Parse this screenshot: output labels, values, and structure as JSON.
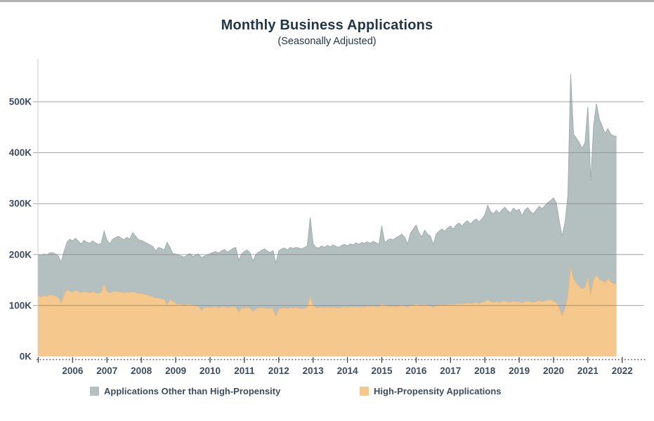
{
  "chart_data": {
    "type": "area",
    "stacked": true,
    "title": "Monthly Business Applications",
    "subtitle": "(Seasonally Adjusted)",
    "frequency": "monthly",
    "x_start": "2005-01",
    "x_end": "2021-11",
    "x_tick_years": [
      2006,
      2007,
      2008,
      2009,
      2010,
      2011,
      2012,
      2013,
      2014,
      2015,
      2016,
      2017,
      2018,
      2019,
      2020,
      2021,
      2022
    ],
    "y_ticks_K": [
      0,
      100,
      200,
      300,
      400,
      500
    ],
    "y_tick_labels": [
      "0K",
      "100K",
      "200K",
      "300K",
      "400K",
      "500K"
    ],
    "ylim_K": [
      0,
      575
    ],
    "grid": "horizontal",
    "legend_position": "bottom",
    "series": [
      {
        "name": "High-Propensity Applications",
        "color": "#f5c88d",
        "edge_color": "#e9b77d",
        "values_thousands": [
          119,
          117,
          120,
          118,
          121,
          120,
          118,
          116,
          105,
          121,
          131,
          128,
          126,
          130,
          127,
          125,
          128,
          126,
          125,
          127,
          125,
          124,
          126,
          141,
          128,
          125,
          127,
          128,
          127,
          126,
          125,
          126,
          125,
          127,
          125,
          123,
          124,
          122,
          121,
          119,
          117,
          115,
          114,
          113,
          112,
          101,
          112,
          108,
          104,
          103,
          102,
          101,
          102,
          103,
          100,
          99,
          98,
          90,
          96,
          97,
          96,
          97,
          98,
          96,
          97,
          98,
          96,
          97,
          98,
          97,
          87,
          95,
          95,
          96,
          95,
          88,
          94,
          95,
          96,
          95,
          94,
          95,
          94,
          79,
          93,
          95,
          96,
          94,
          96,
          95,
          96,
          95,
          94,
          95,
          97,
          118,
          100,
          97,
          96,
          97,
          96,
          97,
          96,
          97,
          96,
          95,
          97,
          98,
          96,
          98,
          97,
          98,
          97,
          98,
          97,
          99,
          98,
          99,
          98,
          97,
          104,
          100,
          99,
          98,
          99,
          98,
          99,
          100,
          99,
          97,
          100,
          101,
          103,
          101,
          100,
          102,
          100,
          99,
          96,
          100,
          101,
          102,
          101,
          102,
          103,
          102,
          103,
          104,
          103,
          104,
          105,
          104,
          105,
          106,
          104,
          106,
          107,
          111,
          108,
          106,
          108,
          106,
          108,
          109,
          107,
          106,
          109,
          107,
          108,
          105,
          108,
          109,
          107,
          106,
          108,
          110,
          108,
          109,
          111,
          112,
          108,
          106,
          96,
          79,
          94,
          118,
          176,
          152,
          143,
          137,
          133,
          136,
          155,
          121,
          152,
          160,
          151,
          148,
          145,
          153,
          146,
          143,
          142
        ]
      },
      {
        "name": "Applications Other than High-Propensity",
        "color": "#b4c0c0",
        "edge_color": "#a0aeae",
        "stacked_on": "High-Propensity Applications",
        "values_thousands": [
          81,
          81,
          81,
          81,
          82,
          84,
          83,
          81,
          80,
          85,
          93,
          102,
          101,
          102,
          99,
          96,
          100,
          98,
          97,
          100,
          98,
          96,
          96,
          105,
          100,
          96,
          103,
          105,
          109,
          106,
          104,
          108,
          105,
          116,
          111,
          106,
          104,
          103,
          101,
          100,
          99,
          92,
          100,
          99,
          97,
          123,
          102,
          94,
          97,
          96,
          95,
          94,
          97,
          99,
          96,
          100,
          103,
          104,
          101,
          102,
          106,
          107,
          108,
          107,
          110,
          112,
          109,
          111,
          114,
          117,
          101,
          106,
          111,
          113,
          108,
          99,
          106,
          110,
          112,
          116,
          113,
          109,
          114,
          104,
          114,
          116,
          117,
          115,
          118,
          117,
          118,
          118,
          117,
          119,
          120,
          155,
          121,
          117,
          117,
          120,
          118,
          121,
          119,
          122,
          120,
          119,
          121,
          122,
          121,
          123,
          122,
          125,
          123,
          126,
          125,
          126,
          124,
          127,
          125,
          123,
          152,
          124,
          129,
          133,
          130,
          135,
          137,
          140,
          135,
          124,
          142,
          149,
          155,
          141,
          135,
          146,
          140,
          137,
          123,
          140,
          145,
          148,
          145,
          150,
          153,
          148,
          155,
          158,
          153,
          159,
          161,
          156,
          161,
          164,
          160,
          164,
          171,
          186,
          176,
          174,
          179,
          175,
          180,
          184,
          179,
          176,
          182,
          179,
          181,
          171,
          180,
          183,
          177,
          174,
          180,
          185,
          182,
          187,
          191,
          194,
          203,
          195,
          170,
          157,
          169,
          198,
          378,
          284,
          285,
          283,
          275,
          284,
          335,
          224,
          303,
          336,
          315,
          304,
          293,
          294,
          290,
          290,
          290
        ]
      }
    ]
  },
  "decor": {
    "top_rule_color": "#b2b2b2",
    "gridline_color": "#8a8a8a",
    "axis_line_color": "#cccccc",
    "baseline_color": "#4d4d4d",
    "label_color": "#3e4c61",
    "title_color": "#22364a"
  }
}
